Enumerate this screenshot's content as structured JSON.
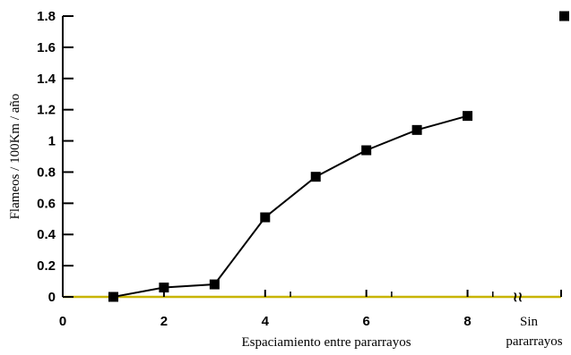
{
  "chart_data": {
    "type": "line",
    "title": "",
    "xlabel": "Espaciamiento entre pararrayos",
    "ylabel": "Flameos / 100Km / año",
    "xlim": [
      0,
      9.85
    ],
    "ylim": [
      0,
      1.8
    ],
    "x_ticks": [
      "0",
      "2",
      "4",
      "6",
      "8"
    ],
    "y_ticks": [
      "0",
      "0.2",
      "0.4",
      "0.6",
      "0.8",
      "1",
      "1.2",
      "1.4",
      "1.6",
      "1.8"
    ],
    "extra_x_label_line1": "Sin",
    "extra_x_label_line2": "pararrayos",
    "axis_break_symbol": "≀≀",
    "series": [
      {
        "values": [
          {
            "x": 1,
            "y": 0.0
          },
          {
            "x": 2,
            "y": 0.06
          },
          {
            "x": 3,
            "y": 0.08
          },
          {
            "x": 4,
            "y": 0.51
          },
          {
            "x": 5,
            "y": 0.77
          },
          {
            "x": 6,
            "y": 0.94
          },
          {
            "x": 7,
            "y": 1.07
          },
          {
            "x": 8,
            "y": 1.16
          }
        ]
      }
    ],
    "no_arrester_point": {
      "label": "Sin pararrayos",
      "y": 1.8
    },
    "grid": false,
    "legend": "none",
    "colors": {
      "line": "#000000",
      "marker": "#000000",
      "x_axis": "#c8b400"
    }
  }
}
